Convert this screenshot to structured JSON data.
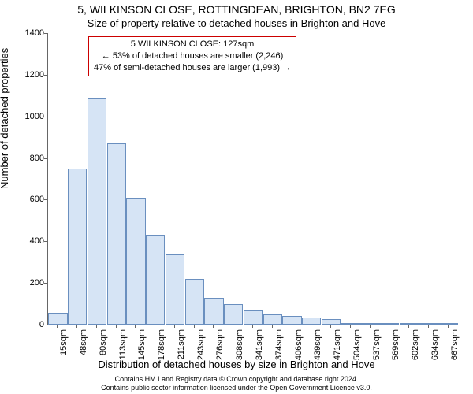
{
  "title_line1": "5, WILKINSON CLOSE, ROTTINGDEAN, BRIGHTON, BN2 7EG",
  "title_line2": "Size of property relative to detached houses in Brighton and Hove",
  "y_axis_label": "Number of detached properties",
  "x_axis_label": "Distribution of detached houses by size in Brighton and Hove",
  "footer_line1": "Contains HM Land Registry data © Crown copyright and database right 2024.",
  "footer_line2": "Contains public sector information licensed under the Open Government Licence v3.0.",
  "chart": {
    "type": "histogram",
    "ylim": [
      0,
      1400
    ],
    "yticks": [
      0,
      200,
      400,
      600,
      800,
      1000,
      1200,
      1400
    ],
    "x_categories": [
      "15sqm",
      "48sqm",
      "80sqm",
      "113sqm",
      "145sqm",
      "178sqm",
      "211sqm",
      "243sqm",
      "276sqm",
      "308sqm",
      "341sqm",
      "374sqm",
      "406sqm",
      "439sqm",
      "471sqm",
      "504sqm",
      "537sqm",
      "569sqm",
      "602sqm",
      "634sqm",
      "667sqm"
    ],
    "bar_values": [
      55,
      750,
      1090,
      870,
      610,
      430,
      340,
      220,
      130,
      100,
      70,
      50,
      40,
      35,
      25,
      5,
      7,
      5,
      6,
      5,
      4
    ],
    "bar_fill": "#d6e4f5",
    "bar_border": "#6a8fbf",
    "background_color": "#ffffff",
    "axis_color": "#666666",
    "reference_line": {
      "x_value_sqm": 127,
      "color": "#cc0000"
    },
    "annotation": {
      "line1": "5 WILKINSON CLOSE: 127sqm",
      "line2": "← 53% of detached houses are smaller (2,246)",
      "line3": "47% of semi-detached houses are larger (1,993) →",
      "border_color": "#cc0000",
      "font_size": 11
    }
  }
}
